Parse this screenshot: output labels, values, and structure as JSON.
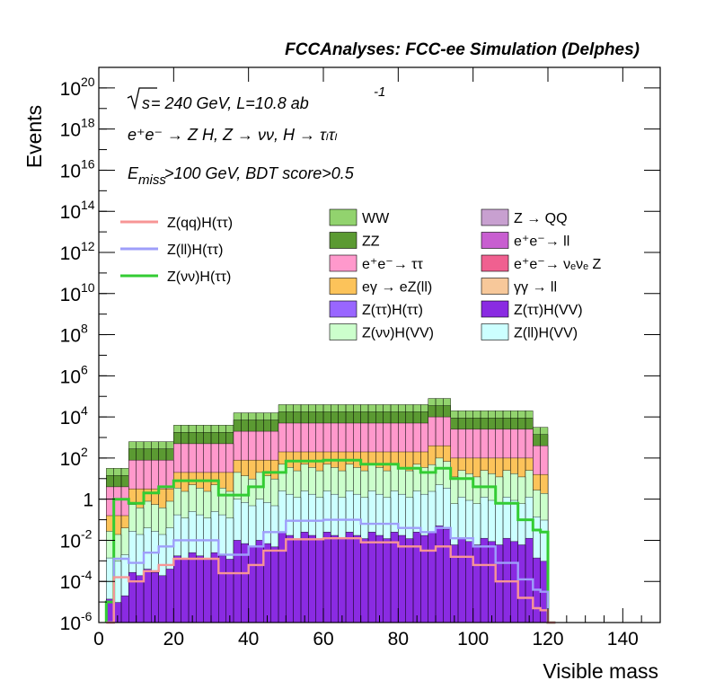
{
  "header": "FCCAnalyses: FCC-ee Simulation (Delphes)",
  "annotations": {
    "energy_sqrt": "s",
    "energy_rest": " = 240 GeV, L=10.8 ab",
    "energy_exp": "-1",
    "process": "e⁺e⁻ → Z H, Z → νν, H → τₗτₗ",
    "selection_E": "E",
    "selection_sub": "miss",
    "selection_rest": ">100 GeV, BDT score>0.5"
  },
  "chart_data": {
    "type": "area",
    "subtype": "stacked-histogram-with-overlaid-lines",
    "xlabel": "Visible mass",
    "ylabel": "Events",
    "xlim": [
      0,
      150
    ],
    "ylim": [
      1e-06,
      1e+21
    ],
    "yscale": "log",
    "grid": false,
    "legend_position": "upper middle",
    "x_ticks": [
      "0",
      "20",
      "40",
      "60",
      "80",
      "100",
      "120",
      "140"
    ],
    "y_ticks": [
      {
        "base": "10",
        "exp": "-6"
      },
      {
        "base": "10",
        "exp": "-4"
      },
      {
        "base": "10",
        "exp": "-2"
      },
      {
        "base": "1",
        "exp": ""
      },
      {
        "base": "10",
        "exp": "2"
      },
      {
        "base": "10",
        "exp": "4"
      },
      {
        "base": "10",
        "exp": "6"
      },
      {
        "base": "10",
        "exp": "8"
      },
      {
        "base": "10",
        "exp": "10"
      },
      {
        "base": "10",
        "exp": "12"
      },
      {
        "base": "10",
        "exp": "14"
      },
      {
        "base": "10",
        "exp": "16"
      },
      {
        "base": "10",
        "exp": "18"
      },
      {
        "base": "10",
        "exp": "20"
      }
    ],
    "bin_width": 2,
    "stack_top_approx": [
      {
        "x_range": [
          2,
          8
        ],
        "log10_events": 1.5
      },
      {
        "x_range": [
          8,
          20
        ],
        "log10_events": 2.8
      },
      {
        "x_range": [
          20,
          36
        ],
        "log10_events": 3.6
      },
      {
        "x_range": [
          36,
          48
        ],
        "log10_events": 4.2
      },
      {
        "x_range": [
          48,
          88
        ],
        "log10_events": 4.6
      },
      {
        "x_range": [
          88,
          94
        ],
        "log10_events": 4.9
      },
      {
        "x_range": [
          94,
          116
        ],
        "log10_events": 4.3
      },
      {
        "x_range": [
          116,
          120
        ],
        "log10_events": 3.5
      }
    ],
    "legend_stack": [
      {
        "name": "WW",
        "color": "#92d36e"
      },
      {
        "name": "Z → QQ",
        "color": "#c8a0d0"
      },
      {
        "name": "ZZ",
        "color": "#5b9a32"
      },
      {
        "name": "e⁺e⁻→ ll",
        "color": "#c85ed0"
      },
      {
        "name": "e⁺e⁻→ ττ",
        "color": "#ff99cc"
      },
      {
        "name": "e⁺e⁻→ νₑνₑ Z",
        "color": "#f06090"
      },
      {
        "name": "eγ → eZ(ll)",
        "color": "#fcc35a"
      },
      {
        "name": "γγ → ll",
        "color": "#f7c89a"
      },
      {
        "name": "Z(ττ)H(ττ)",
        "color": "#9966ff"
      },
      {
        "name": "Z(ττ)H(VV)",
        "color": "#8a2be2"
      },
      {
        "name": "Z(νν)H(VV)",
        "color": "#ccffcc"
      },
      {
        "name": "Z(ll)H(VV)",
        "color": "#ccffff"
      }
    ],
    "legend_lines": [
      {
        "name": "Z(qq)H(ττ)",
        "color": "#f79595"
      },
      {
        "name": "Z(ll)H(ττ)",
        "color": "#9e9efa"
      },
      {
        "name": "Z(νν)H(ττ)",
        "color": "#33cc33"
      }
    ]
  }
}
